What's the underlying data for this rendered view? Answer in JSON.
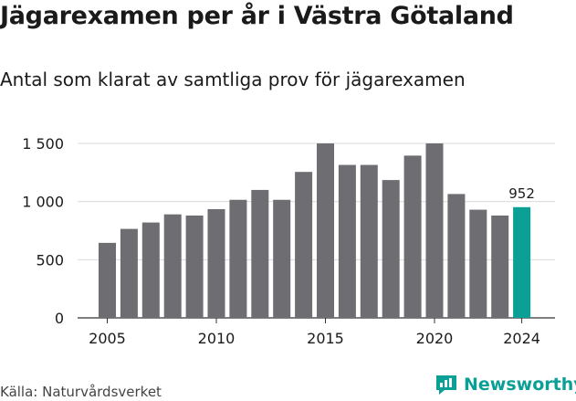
{
  "title": "Jägarexamen per år i Västra Götaland",
  "subtitle": "Antal som klarat av samtliga prov för jägarexamen",
  "source": "Källa: Naturvårdsverket",
  "brand": {
    "name": "Newsworthy",
    "icon": "newsworthy-logo-icon"
  },
  "colors": {
    "bar": "#6e6d72",
    "highlight": "#0aa096",
    "grid": "#d9d9d9",
    "axis": "#333333"
  },
  "chart_data": {
    "type": "bar",
    "categories": [
      "2005",
      "2006",
      "2007",
      "2008",
      "2009",
      "2010",
      "2011",
      "2012",
      "2013",
      "2014",
      "2015",
      "2016",
      "2017",
      "2018",
      "2019",
      "2020",
      "2021",
      "2022",
      "2023",
      "2024"
    ],
    "values": [
      645,
      765,
      820,
      890,
      880,
      935,
      1015,
      1100,
      1015,
      1255,
      1500,
      1315,
      1315,
      1185,
      1395,
      1500,
      1065,
      930,
      880,
      952
    ],
    "x_tick_labels": [
      "2005",
      "2010",
      "2015",
      "2020",
      "2024"
    ],
    "y_ticks": [
      0,
      500,
      1000,
      1500
    ],
    "y_tick_labels": [
      "0",
      "500",
      "1 000",
      "1 500"
    ],
    "ylim": [
      0,
      1500
    ],
    "highlight_category": "2024",
    "annotations": [
      {
        "category": "2024",
        "text": "952"
      }
    ],
    "grid": true,
    "legend": "none"
  }
}
